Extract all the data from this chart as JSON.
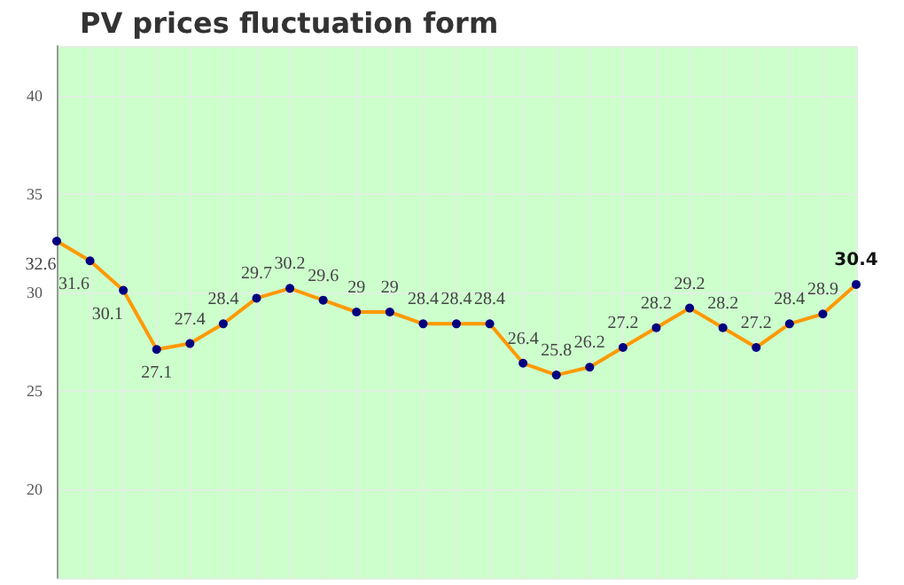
{
  "chart_data": {
    "type": "line",
    "title": "PV prices fluctuation form",
    "categories": [
      null,
      null,
      null,
      null,
      null,
      null,
      null,
      null,
      null,
      null,
      null,
      null,
      null,
      null,
      null,
      null,
      null,
      null,
      null,
      null,
      null,
      null,
      null,
      null,
      null
    ],
    "series": [
      {
        "color": "#ff9900",
        "values": [
          32.6,
          31.6,
          30.1,
          27.1,
          27.4,
          28.4,
          29.7,
          30.2,
          29.6,
          29,
          29,
          28.4,
          28.4,
          28.4,
          26.4,
          25.8,
          26.2,
          27.2,
          28.2,
          29.2,
          28.2,
          27.2,
          28.4,
          28.9,
          30.4
        ]
      }
    ],
    "ylim": [
      15.5,
      42.5
    ],
    "yticks": [
      20,
      25,
      30,
      35,
      40
    ],
    "grid": true,
    "marker": "circle",
    "data_labels": true,
    "tick_labels": "y"
  }
}
